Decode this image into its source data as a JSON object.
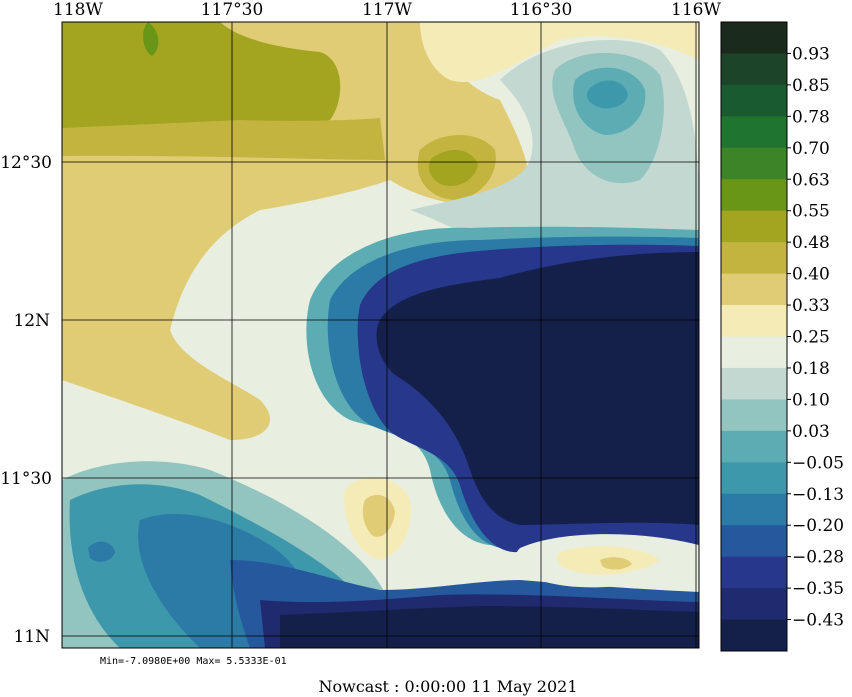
{
  "map": {
    "lon_labels": [
      "118W",
      "117°30",
      "117W",
      "116°30",
      "116W"
    ],
    "lat_labels": [
      "12°30",
      "12N",
      "11°30",
      "11N"
    ],
    "stats": "Min=-7.0980E+00  Max= 5.5333E-01",
    "title": "Nowcast :  0:00:00  11 May 2021"
  },
  "colorbar": {
    "labels": [
      "0.93",
      "0.85",
      "0.78",
      "0.70",
      "0.63",
      "0.55",
      "0.48",
      "0.40",
      "0.33",
      "0.25",
      "0.18",
      "0.10",
      "0.03",
      "−0.05",
      "−0.13",
      "−0.20",
      "−0.28",
      "−0.35",
      "−0.43"
    ],
    "colors": [
      "#1a2a1c",
      "#1c4428",
      "#1a5a30",
      "#1f7430",
      "#3d8428",
      "#6a9618",
      "#a3a420",
      "#c3b440",
      "#e0cc74",
      "#f5ebb6",
      "#e8eee0",
      "#c2d8d0",
      "#92c4c0",
      "#5cacb4",
      "#3e98ac",
      "#2c7aa6",
      "#26589e",
      "#26378c",
      "#1f2b6e",
      "#15204a"
    ]
  }
}
